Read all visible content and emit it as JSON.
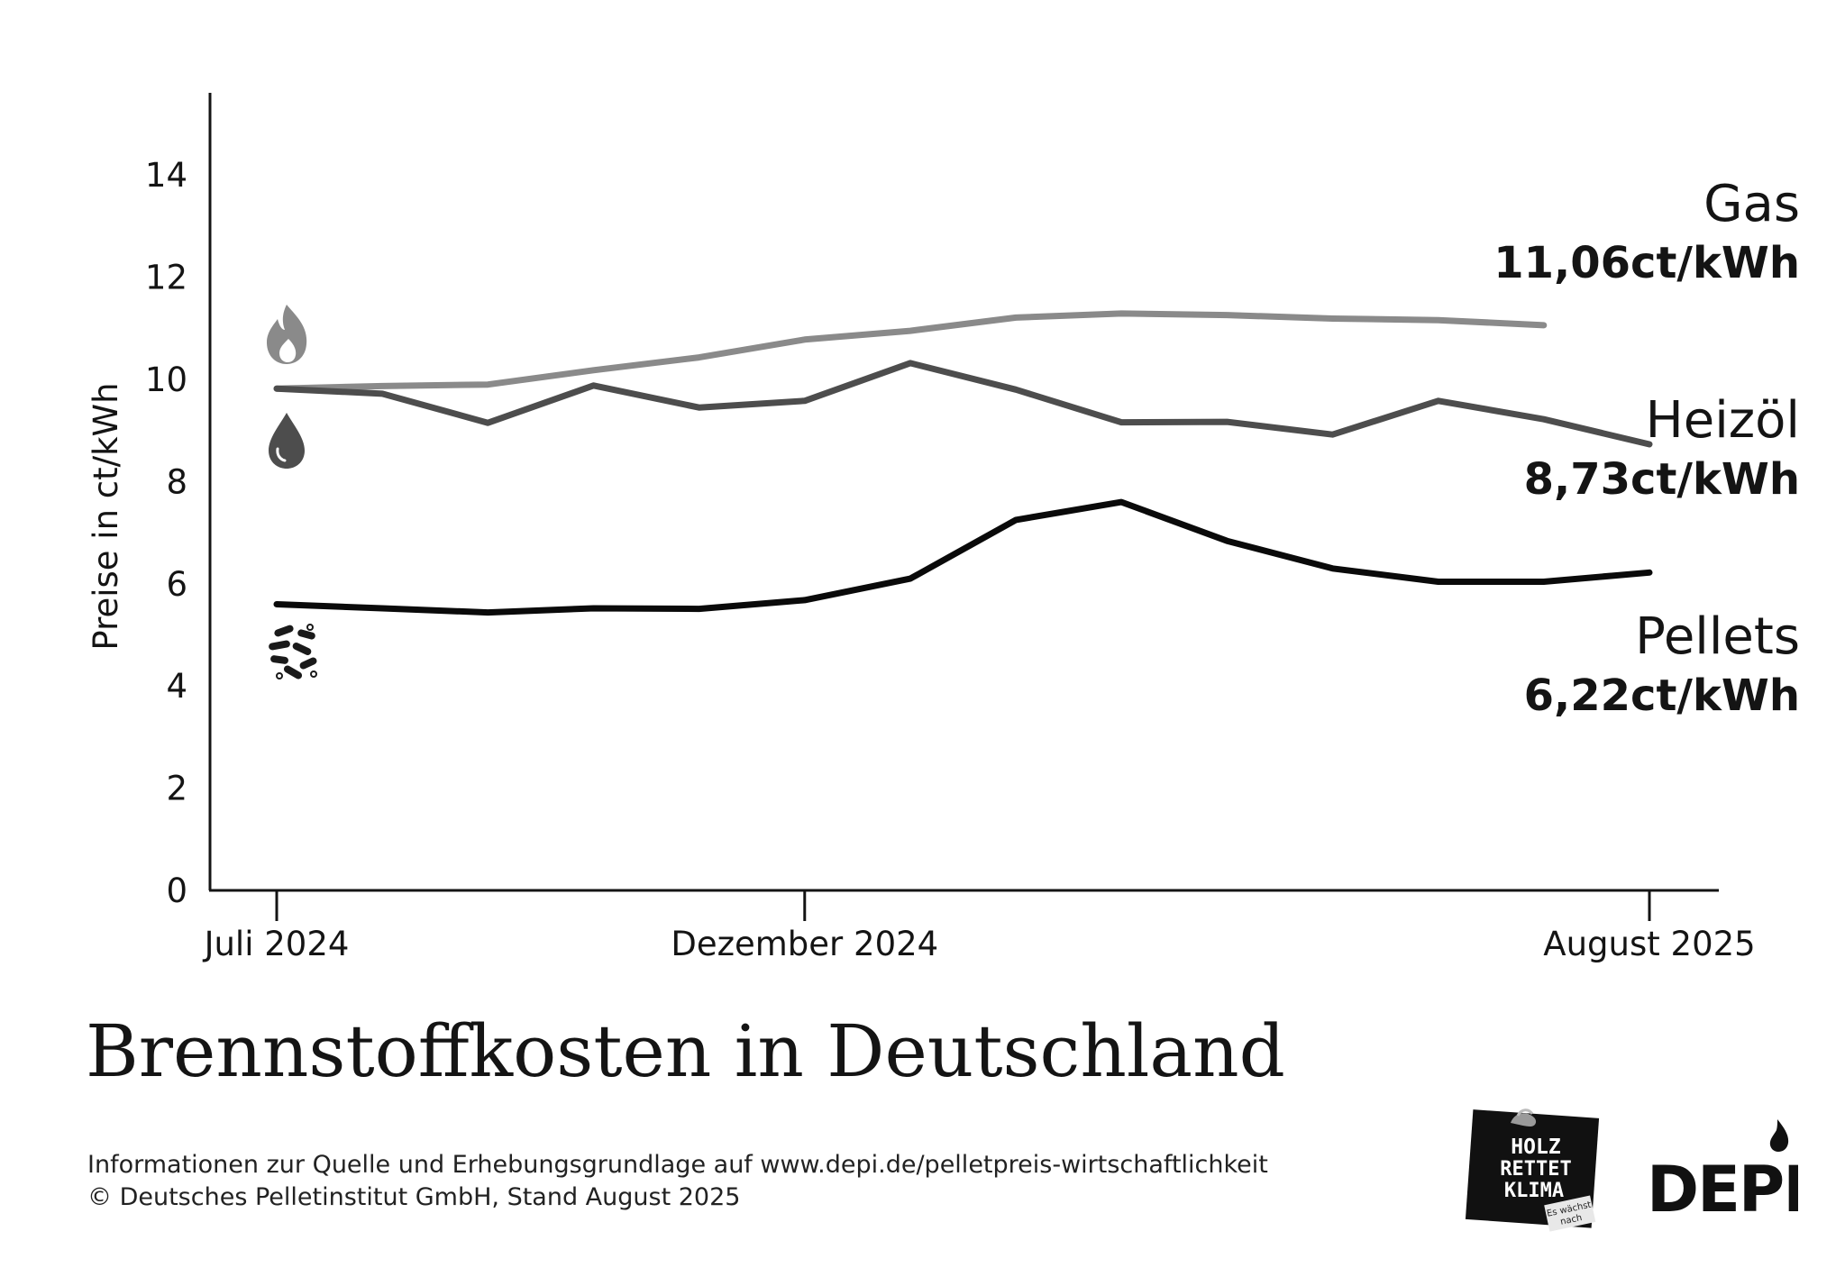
{
  "chart_data": {
    "type": "line",
    "title": "Brennstoffkosten in Deutschland",
    "xlabel": "",
    "ylabel": "Preise in ct/kWh",
    "ylim": [
      0,
      15.5
    ],
    "yticks": [
      0,
      2,
      4,
      6,
      8,
      10,
      12,
      14
    ],
    "x": [
      "2024-07",
      "2024-08",
      "2024-09",
      "2024-10",
      "2024-11",
      "2024-12",
      "2025-01",
      "2025-02",
      "2025-03",
      "2025-04",
      "2025-05",
      "2025-06",
      "2025-07",
      "2025-08"
    ],
    "xtick_labels": [
      {
        "x": "2024-07",
        "label": "Juli 2024"
      },
      {
        "x": "2024-12",
        "label": "Dezember 2024"
      },
      {
        "x": "2025-08",
        "label": "August 2025"
      }
    ],
    "grid": false,
    "legend": "direct labels at right end of each line",
    "series": [
      {
        "name": "Gas",
        "value_label": "11,06ct/kWh",
        "color": "#8a8a8a",
        "icon": "flame-icon",
        "values": [
          9.82,
          9.87,
          9.9,
          10.18,
          10.43,
          10.78,
          10.95,
          11.21,
          11.29,
          11.26,
          11.19,
          11.16,
          11.06,
          null
        ]
      },
      {
        "name": "Heizöl",
        "value_label": "8,73ct/kWh",
        "color": "#4d4d4d",
        "icon": "oil-drop-icon",
        "values": [
          9.82,
          9.72,
          9.15,
          9.88,
          9.45,
          9.58,
          10.32,
          9.8,
          9.16,
          9.17,
          8.92,
          9.58,
          9.22,
          8.73
        ]
      },
      {
        "name": "Pellets",
        "value_label": "6,22ct/kWh",
        "color": "#0a0a0a",
        "icon": "pellets-icon",
        "values": [
          5.6,
          5.52,
          5.44,
          5.52,
          5.51,
          5.68,
          6.1,
          7.25,
          7.6,
          6.84,
          6.3,
          6.04,
          6.04,
          6.22
        ]
      }
    ]
  },
  "source_note": {
    "line1": "Informationen zur Quelle und Erhebungsgrundlage auf www.depi.de/pelletpreis-wirtschaftlichkeit",
    "line2": "© Deutsches Pelletinstitut GmbH, Stand August 2025"
  },
  "logos": {
    "hrk_line1": "HOLZ",
    "hrk_line2": "RETTET",
    "hrk_line3": "KLIMA",
    "hrk_tag1": "Es wächst",
    "hrk_tag2": "nach",
    "depi": "DEPI"
  }
}
